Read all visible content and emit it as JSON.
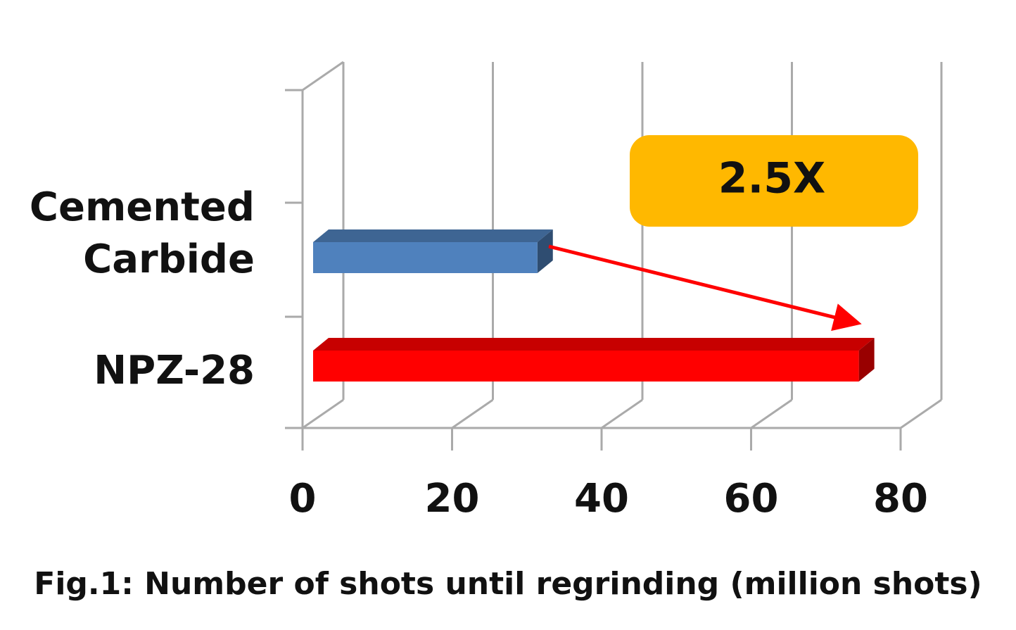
{
  "chart_data": {
    "type": "bar",
    "orientation": "horizontal",
    "title": "Fig.1: Number of shots until regrinding (million shots)",
    "categories": [
      "Cemented Carbide",
      "NPZ-28"
    ],
    "values": [
      30,
      73
    ],
    "colors": [
      "#4f81bd",
      "#ff0000"
    ],
    "xlim": [
      0,
      80
    ],
    "xticks": [
      0,
      20,
      40,
      60,
      80
    ],
    "grid": true,
    "annotation": "2.5X"
  }
}
